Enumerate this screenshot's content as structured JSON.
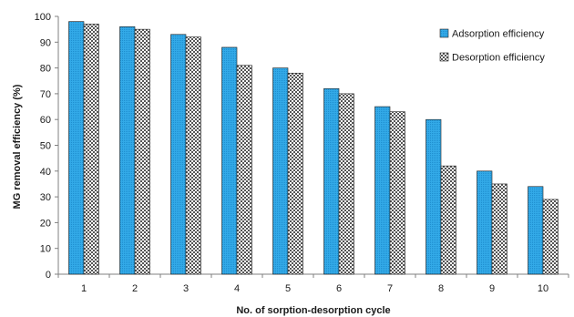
{
  "chart_data": {
    "type": "bar",
    "categories": [
      "1",
      "2",
      "3",
      "4",
      "5",
      "6",
      "7",
      "8",
      "9",
      "10"
    ],
    "series": [
      {
        "name": "Adsorption efficiency",
        "values": [
          98,
          96,
          93,
          88,
          80,
          72,
          65,
          60,
          40,
          34
        ]
      },
      {
        "name": "Desorption efficiency",
        "values": [
          97,
          95,
          92,
          81,
          78,
          70,
          63,
          42,
          35,
          29
        ]
      }
    ],
    "title": "",
    "xlabel": "No. of  sorption-desorption cycle",
    "ylabel": "MG removal efficiency (%)",
    "ylim": [
      0,
      100
    ],
    "yticks": [
      "0",
      "10",
      "20",
      "30",
      "40",
      "50",
      "60",
      "70",
      "80",
      "90",
      "100"
    ],
    "grid": false,
    "legend_position": "top-right",
    "colors": {
      "adsorption": "#2fa8e6",
      "desorption": "#8f8f8f",
      "axis": "#808080"
    }
  }
}
